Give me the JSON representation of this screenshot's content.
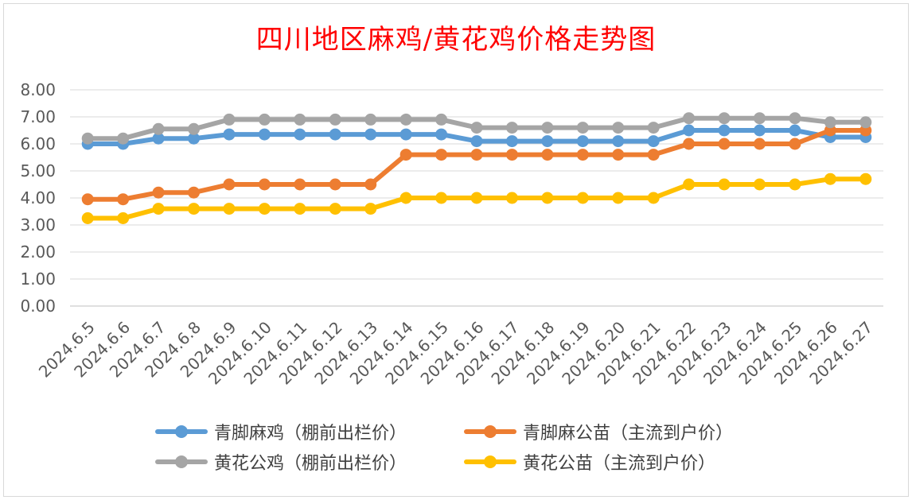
{
  "chart_data": {
    "type": "line",
    "title": "四川地区麻鸡/黄花鸡价格走势图",
    "categories": [
      "2024.6.5",
      "2024.6.6",
      "2024.6.7",
      "2024.6.8",
      "2024.6.9",
      "2024.6.10",
      "2024.6.11",
      "2024.6.12",
      "2024.6.13",
      "2024.6.14",
      "2024.6.15",
      "2024.6.16",
      "2024.6.17",
      "2024.6.18",
      "2024.6.19",
      "2024.6.20",
      "2024.6.21",
      "2024.6.22",
      "2024.6.23",
      "2024.6.24",
      "2024.6.25",
      "2024.6.26",
      "2024.6.27"
    ],
    "ylim": [
      0,
      8
    ],
    "yticks": [
      "0.00",
      "1.00",
      "2.00",
      "3.00",
      "4.00",
      "5.00",
      "6.00",
      "7.00",
      "8.00"
    ],
    "grid": true,
    "legend_position": "bottom",
    "series": [
      {
        "name": "青脚麻鸡（棚前出栏价）",
        "color": "#5b9bd5",
        "values": [
          6.0,
          6.0,
          6.2,
          6.2,
          6.35,
          6.35,
          6.35,
          6.35,
          6.35,
          6.35,
          6.35,
          6.1,
          6.1,
          6.1,
          6.1,
          6.1,
          6.1,
          6.5,
          6.5,
          6.5,
          6.5,
          6.25,
          6.25
        ]
      },
      {
        "name": "青脚麻公苗（主流到户价）",
        "color": "#ed7d31",
        "values": [
          3.95,
          3.95,
          4.2,
          4.2,
          4.5,
          4.5,
          4.5,
          4.5,
          4.5,
          5.6,
          5.6,
          5.6,
          5.6,
          5.6,
          5.6,
          5.6,
          5.6,
          6.0,
          6.0,
          6.0,
          6.0,
          6.5,
          6.5
        ]
      },
      {
        "name": "黄花公鸡（棚前出栏价）",
        "color": "#a5a5a5",
        "values": [
          6.2,
          6.2,
          6.55,
          6.55,
          6.9,
          6.9,
          6.9,
          6.9,
          6.9,
          6.9,
          6.9,
          6.6,
          6.6,
          6.6,
          6.6,
          6.6,
          6.6,
          6.95,
          6.95,
          6.95,
          6.95,
          6.8,
          6.8
        ]
      },
      {
        "name": "黄花公苗（主流到户价）",
        "color": "#ffc000",
        "values": [
          3.25,
          3.25,
          3.6,
          3.6,
          3.6,
          3.6,
          3.6,
          3.6,
          3.6,
          4.0,
          4.0,
          4.0,
          4.0,
          4.0,
          4.0,
          4.0,
          4.0,
          4.5,
          4.5,
          4.5,
          4.5,
          4.7,
          4.7
        ]
      }
    ]
  }
}
